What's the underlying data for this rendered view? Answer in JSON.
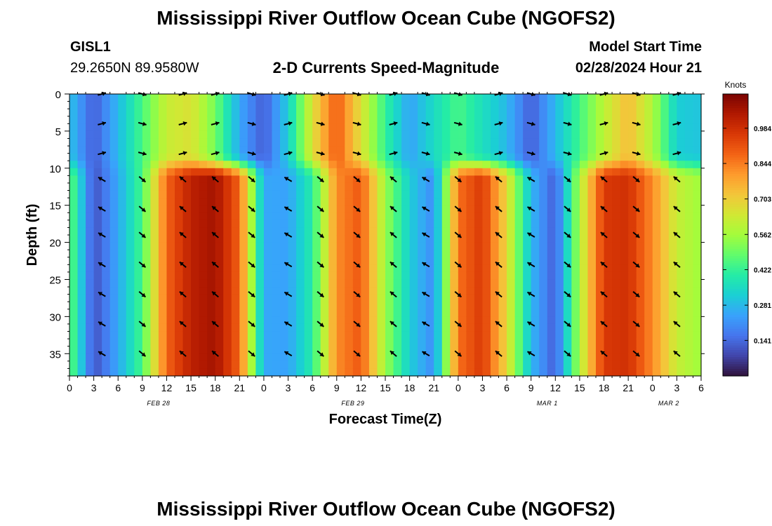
{
  "header": {
    "title": "Mississippi River Outflow Ocean Cube (NGOFS2)",
    "station_id": "GISL1",
    "station_coords": "29.2650N  89.9580W",
    "plot_title": "2-D Currents Speed-Magnitude",
    "start_label": "Model Start Time",
    "start_value": "02/28/2024 Hour 21"
  },
  "footer": {
    "title": "Mississippi River Outflow Ocean Cube (NGOFS2)"
  },
  "colors": {
    "colormap": [
      "#30123b",
      "#4145ab",
      "#4675ed",
      "#39a2fc",
      "#1bcfd4",
      "#24eca6",
      "#61fc6c",
      "#a4fc3b",
      "#d1e834",
      "#f3c63a",
      "#fe9b2d",
      "#f36315",
      "#d93806",
      "#b11901",
      "#7a0402"
    ],
    "arrow": "#000000"
  },
  "chart_data": {
    "type": "heatmap",
    "title": "2-D Currents Speed-Magnitude",
    "xlabel": "Forecast Time(Z)",
    "ylabel": "Depth (ft)",
    "x_range_hours": [
      0,
      78
    ],
    "ylim": [
      0,
      38
    ],
    "y_inverted": true,
    "x_tick_labels": [
      "0",
      "3",
      "6",
      "9",
      "12",
      "15",
      "18",
      "21",
      "0",
      "3",
      "6",
      "9",
      "12",
      "15",
      "18",
      "21",
      "0",
      "3",
      "6",
      "9",
      "12",
      "15",
      "18",
      "21",
      "0",
      "3",
      "6"
    ],
    "y_ticks": [
      0,
      5,
      10,
      15,
      20,
      25,
      30,
      35
    ],
    "date_labels": [
      {
        "text": "FEB 28",
        "hour": 11
      },
      {
        "text": "FEB 29",
        "hour": 35
      },
      {
        "text": "MAR 1",
        "hour": 59
      },
      {
        "text": "MAR 2",
        "hour": 74
      }
    ],
    "colorbar": {
      "unit_label": "Knots",
      "vmin": 0.0,
      "vmax": 1.12,
      "tick_values": [
        0.141,
        0.281,
        0.422,
        0.562,
        0.703,
        0.844,
        0.984
      ]
    },
    "surface_layer_depth_ft": 10,
    "surface_speed_knots": [
      0.3,
      0.12,
      0.28,
      0.45,
      0.62,
      0.66,
      0.5,
      0.25,
      0.12,
      0.32,
      0.66,
      0.9,
      0.66,
      0.42,
      0.24,
      0.35,
      0.45,
      0.36,
      0.28,
      0.12,
      0.28,
      0.44,
      0.6,
      0.74,
      0.58,
      0.32,
      0.3
    ],
    "deep_speed_knots": [
      0.5,
      0.1,
      0.25,
      0.45,
      0.88,
      1.02,
      1.06,
      0.88,
      0.25,
      0.24,
      0.4,
      0.82,
      0.9,
      0.55,
      0.32,
      0.2,
      0.86,
      0.96,
      0.68,
      0.28,
      0.12,
      0.58,
      0.96,
      0.98,
      0.82,
      0.62,
      0.55
    ],
    "arrow_columns_hours": [
      4,
      9,
      14,
      18,
      22.5,
      27,
      31,
      35.5,
      40,
      44,
      48,
      53,
      57,
      61.5,
      66,
      70,
      75
    ],
    "arrow_rows_depth_ft": [
      0,
      4,
      8,
      11.5,
      15.5,
      19,
      23,
      27,
      31,
      35
    ]
  }
}
